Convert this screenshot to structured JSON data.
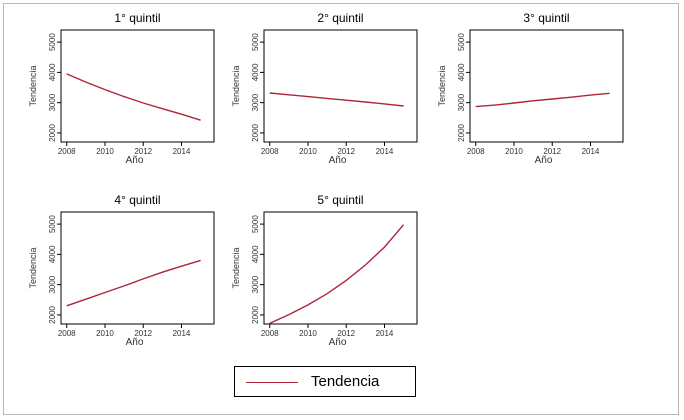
{
  "chart_data": [
    {
      "type": "line",
      "title": "1° quintil",
      "xlabel": "Año",
      "ylabel": "Tendencia",
      "x": [
        2008,
        2009,
        2010,
        2011,
        2012,
        2013,
        2014,
        2015
      ],
      "y": [
        3950,
        3680,
        3430,
        3200,
        2990,
        2800,
        2620,
        2420
      ],
      "xticks": [
        "2008",
        "2010",
        "2012",
        "2014"
      ],
      "yticks": [
        "2000",
        "3000",
        "4000",
        "5000"
      ],
      "xlim": [
        2007.7,
        2015.7
      ],
      "ylim": [
        1700,
        5400
      ],
      "grid": false
    },
    {
      "type": "line",
      "title": "2° quintil",
      "xlabel": "Año",
      "ylabel": "Tendencia",
      "x": [
        2008,
        2009,
        2010,
        2011,
        2012,
        2013,
        2014,
        2015
      ],
      "y": [
        3320,
        3260,
        3200,
        3140,
        3080,
        3020,
        2960,
        2890
      ],
      "xticks": [
        "2008",
        "2010",
        "2012",
        "2014"
      ],
      "yticks": [
        "2000",
        "3000",
        "4000",
        "5000"
      ],
      "xlim": [
        2007.7,
        2015.7
      ],
      "ylim": [
        1700,
        5400
      ],
      "grid": false
    },
    {
      "type": "line",
      "title": "3° quintil",
      "xlabel": "Año",
      "ylabel": "Tendencia",
      "x": [
        2008,
        2009,
        2010,
        2011,
        2012,
        2013,
        2014,
        2015
      ],
      "y": [
        2870,
        2920,
        2990,
        3060,
        3120,
        3180,
        3250,
        3310
      ],
      "xticks": [
        "2008",
        "2010",
        "2012",
        "2014"
      ],
      "yticks": [
        "2000",
        "3000",
        "4000",
        "5000"
      ],
      "xlim": [
        2007.7,
        2015.7
      ],
      "ylim": [
        1700,
        5400
      ],
      "grid": false
    },
    {
      "type": "line",
      "title": "4° quintil",
      "xlabel": "Año",
      "ylabel": "Tendencia",
      "x": [
        2008,
        2009,
        2010,
        2011,
        2012,
        2013,
        2014,
        2015
      ],
      "y": [
        2300,
        2520,
        2740,
        2960,
        3190,
        3410,
        3610,
        3800
      ],
      "xticks": [
        "2008",
        "2010",
        "2012",
        "2014"
      ],
      "yticks": [
        "2000",
        "3000",
        "4000",
        "5000"
      ],
      "xlim": [
        2007.7,
        2015.7
      ],
      "ylim": [
        1700,
        5400
      ],
      "grid": false
    },
    {
      "type": "line",
      "title": "5° quintil",
      "xlabel": "Año",
      "ylabel": "Tendencia",
      "x": [
        2008,
        2009,
        2010,
        2011,
        2012,
        2013,
        2014,
        2015
      ],
      "y": [
        1720,
        2010,
        2330,
        2700,
        3140,
        3650,
        4240,
        4980
      ],
      "xticks": [
        "2008",
        "2010",
        "2012",
        "2014"
      ],
      "yticks": [
        "2000",
        "3000",
        "4000",
        "5000"
      ],
      "xlim": [
        2007.7,
        2015.7
      ],
      "ylim": [
        1700,
        5400
      ],
      "grid": false
    }
  ],
  "legend": {
    "label": "Tendencia",
    "color": "#b0243a"
  }
}
